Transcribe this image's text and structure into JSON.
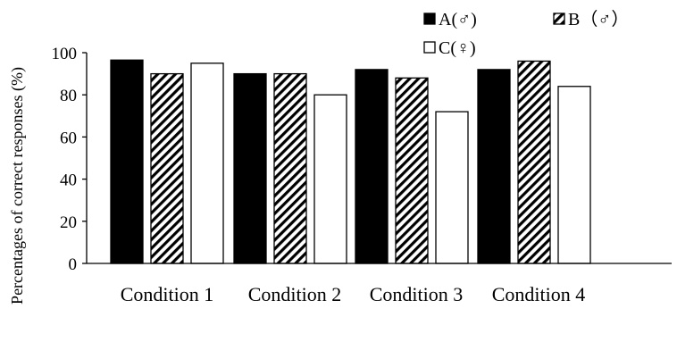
{
  "chart_data": {
    "type": "bar",
    "categories": [
      "Condition 1",
      "Condition 2",
      "Condition 3",
      "Condition 4"
    ],
    "series": [
      {
        "name": "A(♂)",
        "values": [
          96.5,
          90,
          92,
          92
        ],
        "pattern": "solid",
        "color": "#000000"
      },
      {
        "name": "B（♂）",
        "values": [
          90,
          90,
          88,
          96
        ],
        "pattern": "hatch",
        "color": "#000000"
      },
      {
        "name": "C(♀)",
        "values": [
          95,
          80,
          72,
          84
        ],
        "pattern": "hollow",
        "color": "#ffffff"
      }
    ],
    "ylabel": "Percentages of correct responses (%)",
    "xlabel": "",
    "ylim": [
      0,
      100
    ],
    "yticks": [
      0,
      20,
      40,
      60,
      80,
      100
    ],
    "grid": false,
    "legend_position": "top-right"
  }
}
